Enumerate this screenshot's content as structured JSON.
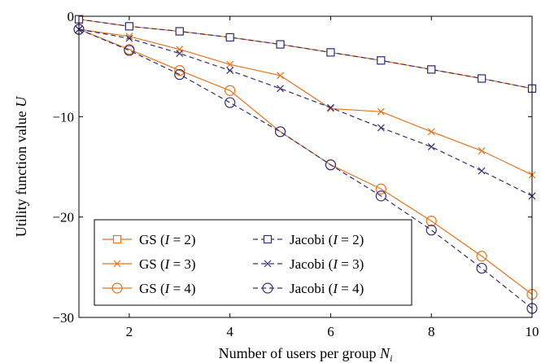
{
  "chart_data": {
    "type": "line",
    "xlabel": "Number of users per group N_i",
    "xlabel_main": "Number of users per group ",
    "xlabel_var": "N",
    "xlabel_sub": "i",
    "ylabel": "Utility function value U",
    "ylabel_main": "Utility function value ",
    "ylabel_var": "U",
    "xlim": [
      1,
      10
    ],
    "ylim": [
      -30,
      0
    ],
    "x_ticks": [
      2,
      4,
      6,
      8,
      10
    ],
    "x_tick_labels": [
      "2",
      "4",
      "6",
      "8",
      "10"
    ],
    "y_ticks": [
      0,
      -10,
      -20,
      -30
    ],
    "y_tick_labels": [
      "0",
      "−10",
      "−20",
      "−30"
    ],
    "grid": false,
    "legend_position": "bottom-left",
    "x": [
      1,
      2,
      3,
      4,
      5,
      6,
      7,
      8,
      9,
      10
    ],
    "series": [
      {
        "name": "GS (I = 2)",
        "legend_prefix": "GS (",
        "legend_var": "I",
        "legend_suffix": " = 2)",
        "color": "#e8731a",
        "marker": "square",
        "dashed": false,
        "values": [
          -0.3,
          -1.0,
          -1.5,
          -2.1,
          -2.8,
          -3.6,
          -4.4,
          -5.3,
          -6.2,
          -7.2
        ]
      },
      {
        "name": "GS (I = 3)",
        "legend_prefix": "GS (",
        "legend_var": "I",
        "legend_suffix": " = 3)",
        "color": "#e8731a",
        "marker": "x",
        "dashed": false,
        "values": [
          -1.3,
          -2.0,
          -3.3,
          -4.8,
          -5.9,
          -9.2,
          -9.5,
          -11.5,
          -13.4,
          -15.8
        ]
      },
      {
        "name": "GS (I = 4)",
        "legend_prefix": "GS (",
        "legend_var": "I",
        "legend_suffix": " = 4)",
        "color": "#e8731a",
        "marker": "circle",
        "dashed": false,
        "values": [
          -1.3,
          -3.3,
          -5.4,
          -7.4,
          -11.5,
          -14.8,
          -17.2,
          -20.4,
          -23.9,
          -27.7
        ]
      },
      {
        "name": "Jacobi (I = 2)",
        "legend_prefix": "Jacobi (",
        "legend_var": "I",
        "legend_suffix": " = 2)",
        "color": "#35307a",
        "marker": "square",
        "dashed": true,
        "values": [
          -0.3,
          -1.0,
          -1.5,
          -2.1,
          -2.8,
          -3.6,
          -4.4,
          -5.3,
          -6.2,
          -7.2
        ]
      },
      {
        "name": "Jacobi (I = 3)",
        "legend_prefix": "Jacobi (",
        "legend_var": "I",
        "legend_suffix": " = 3)",
        "color": "#35307a",
        "marker": "x",
        "dashed": true,
        "values": [
          -1.3,
          -2.2,
          -3.7,
          -5.4,
          -7.2,
          -9.1,
          -11.1,
          -13.0,
          -15.4,
          -17.9
        ]
      },
      {
        "name": "Jacobi (I = 4)",
        "legend_prefix": "Jacobi (",
        "legend_var": "I",
        "legend_suffix": " = 4)",
        "color": "#35307a",
        "marker": "circle",
        "dashed": true,
        "values": [
          -1.3,
          -3.4,
          -5.8,
          -8.6,
          -11.5,
          -14.8,
          -17.9,
          -21.3,
          -25.1,
          -29.1
        ]
      }
    ]
  }
}
